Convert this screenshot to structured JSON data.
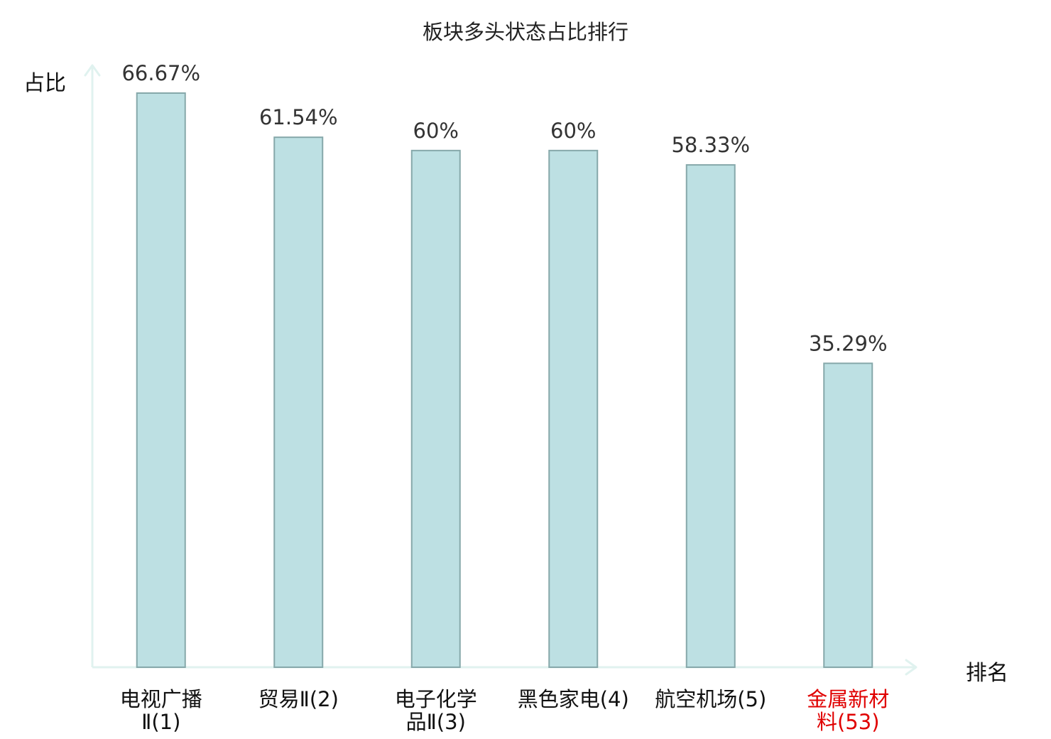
{
  "chart_data": {
    "type": "bar",
    "title": "板块多头状态占比排行",
    "xlabel": "排名",
    "ylabel": "占比",
    "categories": [
      {
        "name": "电视广播Ⅱ",
        "rank": "(1)",
        "lines": [
          "电视广播",
          "Ⅱ(1)"
        ],
        "highlight": false
      },
      {
        "name": "贸易Ⅱ",
        "rank": "(2)",
        "lines": [
          "贸易Ⅱ(2)"
        ],
        "highlight": false
      },
      {
        "name": "电子化学品Ⅱ",
        "rank": "(3)",
        "lines": [
          "电子化学",
          "品Ⅱ(3)"
        ],
        "highlight": false
      },
      {
        "name": "黑色家电",
        "rank": "(4)",
        "lines": [
          "黑色家电(4)"
        ],
        "highlight": false
      },
      {
        "name": "航空机场",
        "rank": "(5)",
        "lines": [
          "航空机场(5)"
        ],
        "highlight": false
      },
      {
        "name": "金属新材料",
        "rank": "(53)",
        "lines": [
          "金属新材",
          "料(53)"
        ],
        "highlight": true
      }
    ],
    "values": [
      66.67,
      61.54,
      60,
      60,
      58.33,
      35.29
    ],
    "value_labels": [
      "66.67%",
      "61.54%",
      "60%",
      "60%",
      "58.33%",
      "35.29%"
    ],
    "ylim": [
      0,
      66.67
    ],
    "grid": false,
    "legend": "none"
  },
  "colors": {
    "bar_fill": "#bde0e3",
    "bar_stroke": "#86a8aa",
    "axis": "#e0f2ef",
    "value_label": "#333333",
    "category_label": "#111111",
    "highlight": "#e00000"
  }
}
